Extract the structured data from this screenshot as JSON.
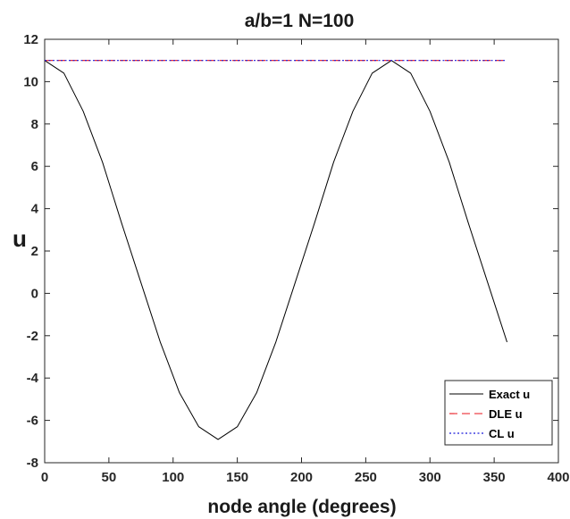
{
  "chart_data": {
    "type": "line",
    "title": "a/b=1  N=100",
    "xlabel": "node angle (degrees)",
    "ylabel": "u",
    "xlim": [
      0,
      400
    ],
    "ylim": [
      -8,
      12
    ],
    "xticks": [
      0,
      50,
      100,
      150,
      200,
      250,
      300,
      350,
      400
    ],
    "yticks": [
      -8,
      -6,
      -4,
      -2,
      0,
      2,
      4,
      6,
      8,
      10,
      12
    ],
    "grid": false,
    "legend_position": "bottom-right",
    "series": [
      {
        "name": "Exact u",
        "color": "#000000",
        "dash": "solid",
        "x": [
          0,
          15,
          30,
          45,
          60,
          75,
          90,
          105,
          120,
          135,
          150,
          165,
          180,
          195,
          210,
          225,
          240,
          255,
          270,
          285,
          300,
          315,
          330,
          345,
          360
        ],
        "y": [
          11,
          10.4,
          8.6,
          6.2,
          3.3,
          0.5,
          -2.3,
          -4.7,
          -6.3,
          -6.9,
          -6.3,
          -4.7,
          -2.3,
          0.5,
          3.3,
          6.2,
          8.6,
          10.4,
          11,
          10.4,
          8.6,
          6.2,
          3.3,
          0.5,
          -2.3
        ]
      },
      {
        "name": "DLE u",
        "color": "#e8141c",
        "dash": "dashed",
        "x": [
          0,
          360
        ],
        "y": [
          11,
          11
        ]
      },
      {
        "name": "CL u",
        "color": "#1a1adb",
        "dash": "dotted",
        "x": [
          0,
          360
        ],
        "y": [
          11,
          11
        ]
      }
    ]
  }
}
